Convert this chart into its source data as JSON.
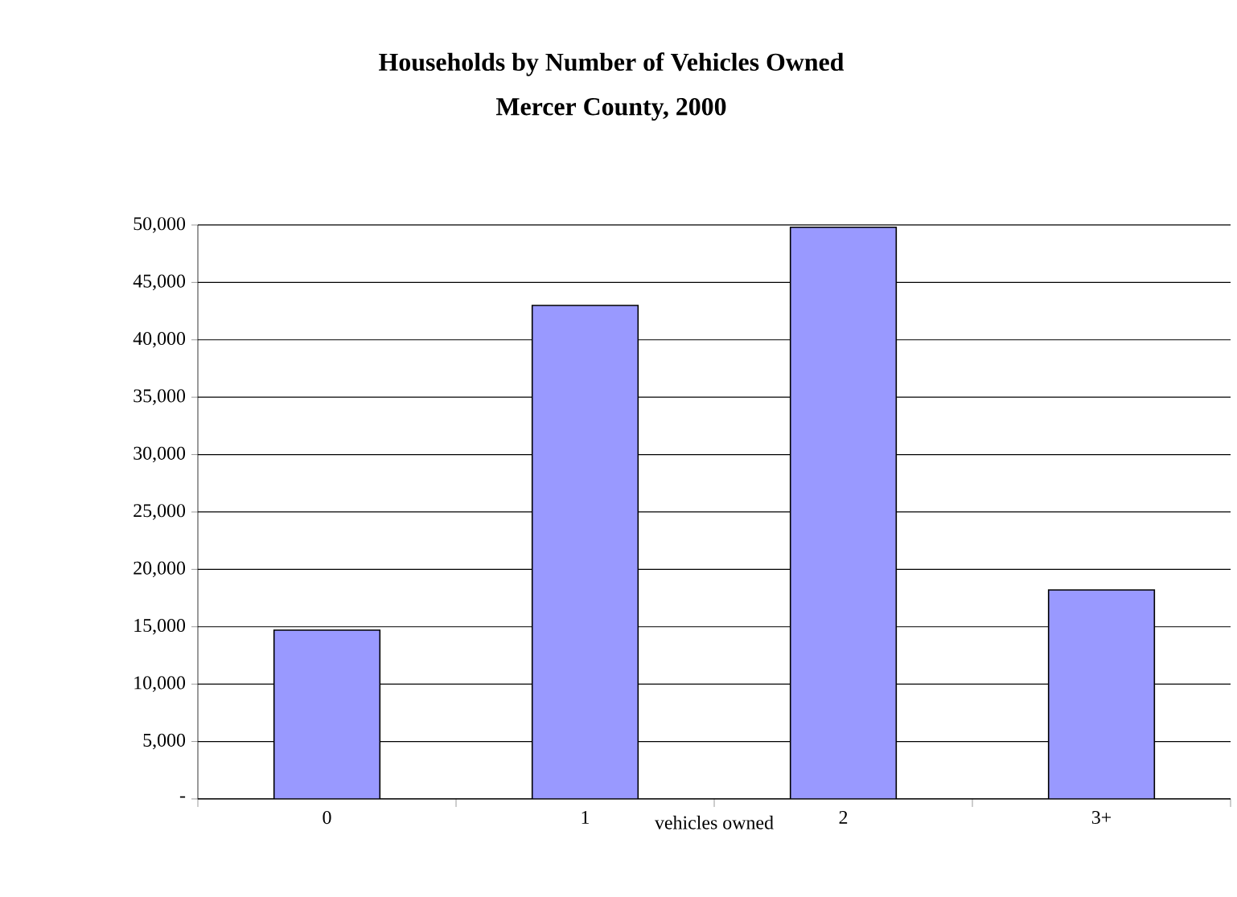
{
  "chart_data": {
    "type": "bar",
    "title": "Households by Number of Vehicles Owned",
    "subtitle": "Mercer County, 2000",
    "xlabel": "vehicles owned",
    "categories": [
      "0",
      "1",
      "2",
      "3+"
    ],
    "values": [
      14700,
      43000,
      49800,
      18200
    ],
    "color": "#9999ff",
    "ylim": [
      0,
      50000
    ],
    "yticks": [
      {
        "value": 0,
        "label": "-"
      },
      {
        "value": 5000,
        "label": "5,000"
      },
      {
        "value": 10000,
        "label": "10,000"
      },
      {
        "value": 15000,
        "label": "15,000"
      },
      {
        "value": 20000,
        "label": "20,000"
      },
      {
        "value": 25000,
        "label": "25,000"
      },
      {
        "value": 30000,
        "label": "30,000"
      },
      {
        "value": 35000,
        "label": "35,000"
      },
      {
        "value": 40000,
        "label": "40,000"
      },
      {
        "value": 45000,
        "label": "45,000"
      },
      {
        "value": 50000,
        "label": "50,000"
      }
    ],
    "grid": "y"
  }
}
